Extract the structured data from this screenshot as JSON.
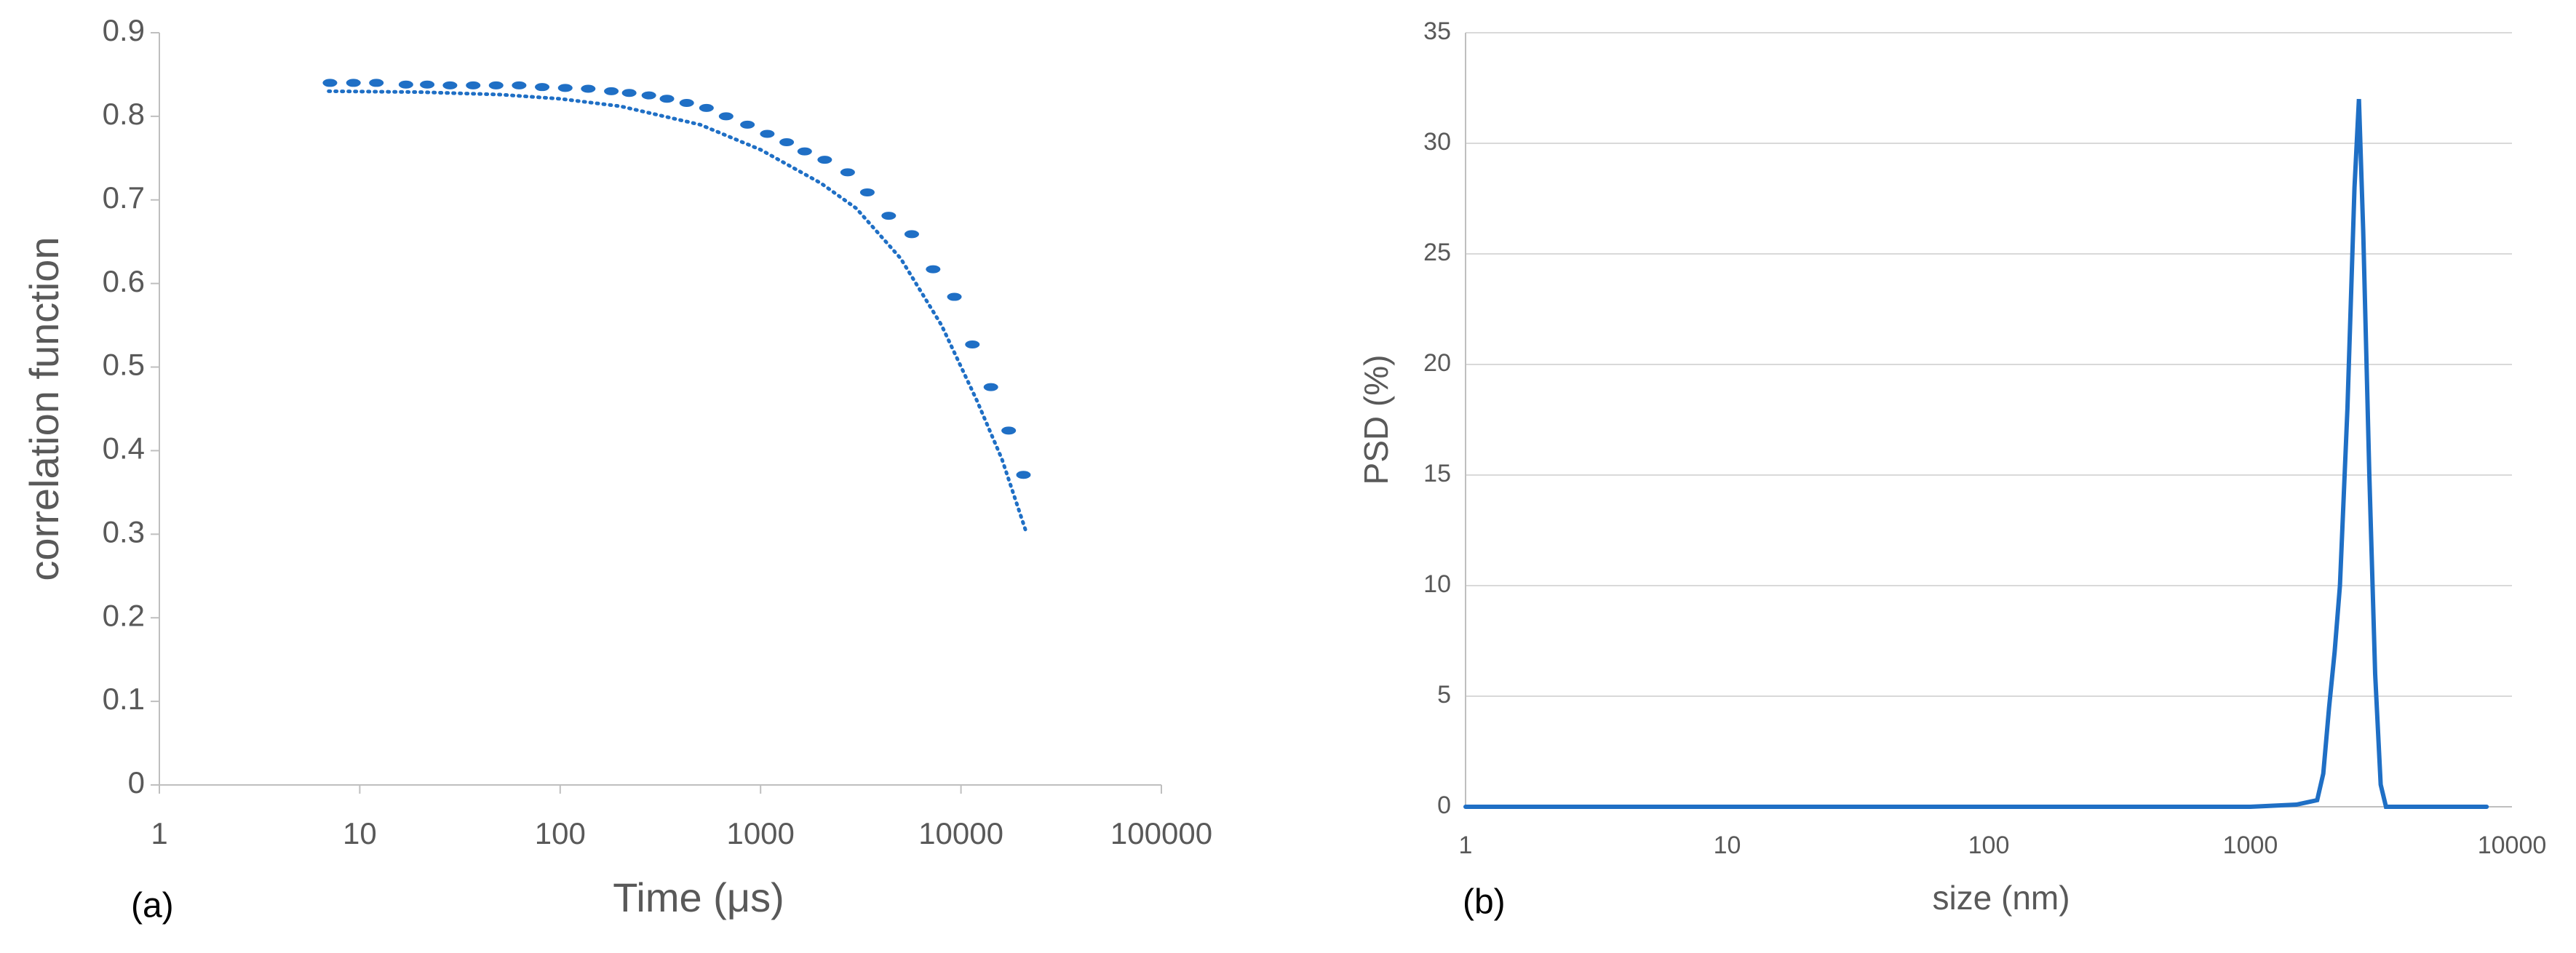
{
  "chart_data": [
    {
      "type": "scatter",
      "panel_label": "(a)",
      "x_label": "Time (μs)",
      "y_label": "correlation function",
      "xscale": "log",
      "xlim": [
        1,
        100000
      ],
      "xticks": [
        1,
        10,
        100,
        1000,
        10000,
        100000
      ],
      "ylim": [
        0,
        0.9
      ],
      "yticks": [
        0,
        0.1,
        0.2,
        0.3,
        0.4,
        0.5,
        0.6,
        0.7,
        0.8,
        0.9
      ],
      "grid": false,
      "series": [
        {
          "style": "markers",
          "color": "#1f6fc5",
          "x": [
            7.1,
            9.3,
            12.1,
            17,
            21.7,
            28.2,
            36.8,
            47.9,
            62.4,
            81.3,
            106,
            138,
            180,
            221,
            277,
            341,
            428,
            537,
            673,
            860,
            1080,
            1350,
            1660,
            2090,
            2720,
            3410,
            4360,
            5680,
            7260,
            9270,
            11400,
            14100,
            17300,
            20500
          ],
          "values": [
            0.84,
            0.84,
            0.84,
            0.838,
            0.838,
            0.837,
            0.837,
            0.837,
            0.837,
            0.835,
            0.834,
            0.833,
            0.83,
            0.828,
            0.825,
            0.821,
            0.816,
            0.81,
            0.8,
            0.79,
            0.779,
            0.769,
            0.758,
            0.748,
            0.733,
            0.709,
            0.681,
            0.659,
            0.617,
            0.584,
            0.527,
            0.476,
            0.424,
            0.371
          ]
        },
        {
          "style": "dotted",
          "color": "#1f6fc5",
          "x": [
            7,
            20,
            50,
            100,
            200,
            500,
            1000,
            2000,
            3000,
            5000,
            8000,
            12000,
            16000,
            21000
          ],
          "values": [
            0.83,
            0.829,
            0.826,
            0.821,
            0.812,
            0.79,
            0.76,
            0.72,
            0.69,
            0.63,
            0.55,
            0.46,
            0.39,
            0.305
          ]
        }
      ]
    },
    {
      "type": "line",
      "panel_label": "(b)",
      "x_label": "size (nm)",
      "y_label": "PSD (%)",
      "xscale": "log",
      "xlim": [
        1,
        10000
      ],
      "xticks": [
        1,
        10,
        100,
        1000,
        10000
      ],
      "ylim": [
        0,
        35
      ],
      "yticks": [
        0,
        5,
        10,
        15,
        20,
        25,
        30,
        35
      ],
      "grid": true,
      "series": [
        {
          "style": "solid",
          "color": "#1f6fc5",
          "x": [
            1,
            1000,
            1500,
            1800,
            1900,
            2000,
            2100,
            2200,
            2350,
            2500,
            2600,
            2700,
            2850,
            3000,
            3150,
            3300,
            8000
          ],
          "values": [
            0,
            0,
            0.1,
            0.3,
            1.5,
            4.5,
            7,
            10,
            18,
            28,
            32,
            26,
            15,
            6,
            1,
            0,
            0
          ]
        }
      ]
    }
  ]
}
